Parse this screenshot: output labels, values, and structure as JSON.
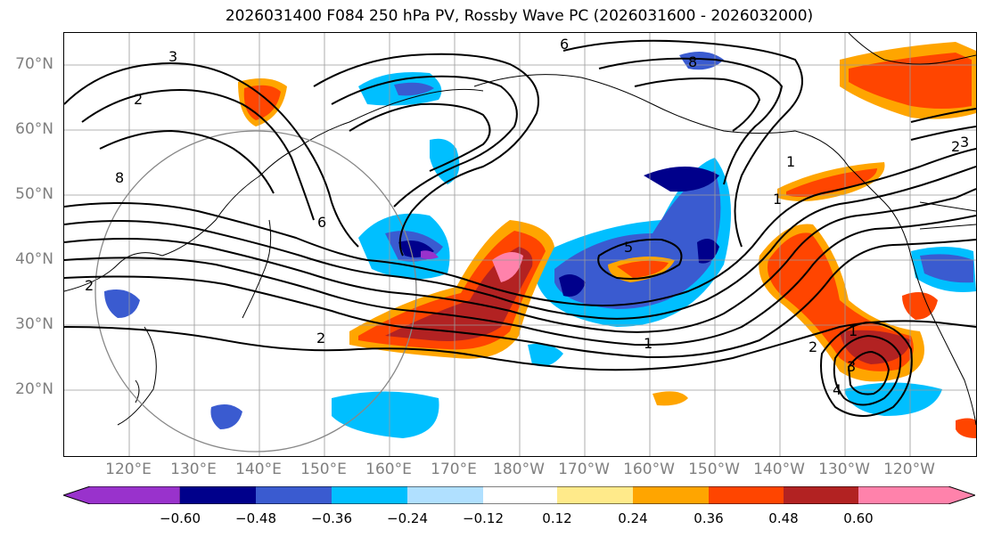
{
  "title": "2026031400 F084 250 hPa PV, Rossby Wave PC (2026031600 - 2026032000)",
  "lat_labels": [
    "70°N",
    "60°N",
    "50°N",
    "40°N",
    "30°N",
    "20°N"
  ],
  "lon_labels": [
    "120°E",
    "130°E",
    "140°E",
    "150°E",
    "160°E",
    "170°E",
    "180°W",
    "170°W",
    "160°W",
    "150°W",
    "140°W",
    "130°W",
    "120°W"
  ],
  "colorbar": {
    "ticks": [
      "−0.60",
      "−0.48",
      "−0.36",
      "−0.24",
      "−0.12",
      "0.12",
      "0.24",
      "0.36",
      "0.48",
      "0.60"
    ],
    "colors": [
      "#9932cc",
      "#00008b",
      "#3a5bd0",
      "#00bfff",
      "#b0e0ff",
      "#ffffff",
      "#ffea8a",
      "#ffa500",
      "#ff4500",
      "#b22222",
      "#ff82ab"
    ]
  },
  "contour_labels": [
    "3",
    "2",
    "6",
    "8",
    "2",
    "1",
    "5",
    "2",
    "1",
    "1",
    "1",
    "2",
    "3",
    "4",
    "6",
    "8",
    "2",
    "3"
  ],
  "map": {
    "lat_range": [
      10,
      75
    ],
    "lon_range_deg_east": [
      110,
      250
    ],
    "gridlines": true,
    "circle": "gray ring centered over the western Pacific"
  }
}
